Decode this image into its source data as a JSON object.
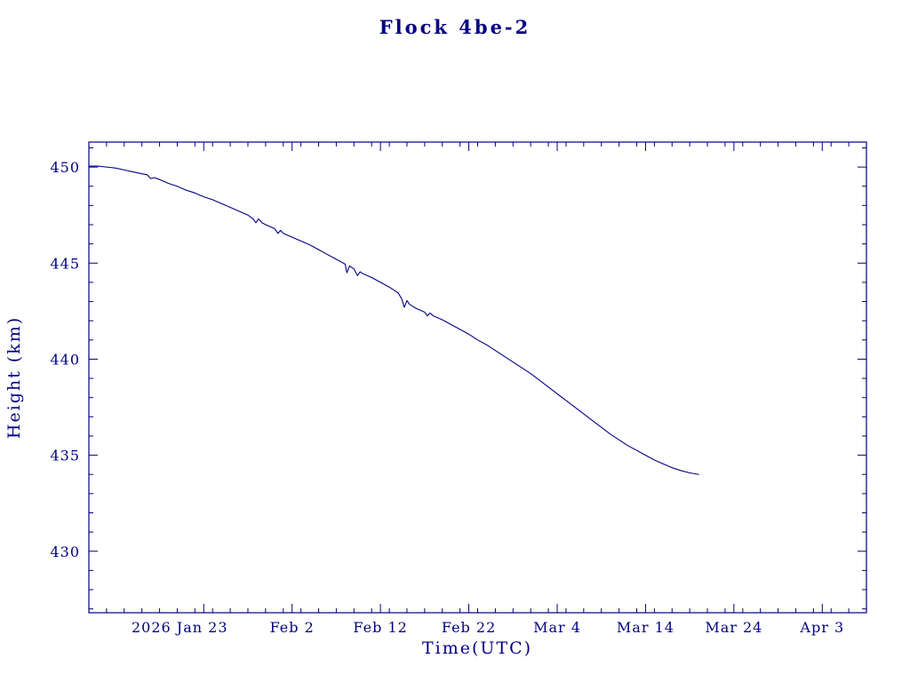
{
  "page": {
    "background": "#ffffff",
    "accent": "#000080"
  },
  "chart_data": {
    "type": "line",
    "title": "Flock 4be-2",
    "xlabel": "Time(UTC)",
    "ylabel": "Height (km)",
    "line_color": "#000080",
    "grid": false,
    "legend": "none",
    "x_axis": {
      "unit": "days (0 = 2026 Jan 10, read from tick labels)",
      "range": [
        0,
        88
      ],
      "minor_tick_step": 2,
      "major_ticks": [
        {
          "day": 13,
          "label": "2026 Jan 23",
          "dx": -27
        },
        {
          "day": 23,
          "label": "Feb 2",
          "dx": 0
        },
        {
          "day": 33,
          "label": "Feb 12",
          "dx": 0
        },
        {
          "day": 43,
          "label": "Feb 22",
          "dx": 0
        },
        {
          "day": 53,
          "label": "Mar 4",
          "dx": 0
        },
        {
          "day": 63,
          "label": "Mar 14",
          "dx": 0
        },
        {
          "day": 73,
          "label": "Mar 24",
          "dx": 0
        },
        {
          "day": 83,
          "label": "Apr 3",
          "dx": 0
        }
      ]
    },
    "y_axis": {
      "unit": "km",
      "range": [
        426.8,
        451.3
      ],
      "minor_tick_step": 1,
      "major_ticks": [
        430,
        435,
        440,
        445,
        450
      ]
    },
    "series": [
      {
        "name": "height_km",
        "points": [
          [
            0,
            450.05
          ],
          [
            1,
            450.05
          ],
          [
            2,
            450.0
          ],
          [
            3,
            449.95
          ],
          [
            4,
            449.85
          ],
          [
            5,
            449.75
          ],
          [
            6,
            449.65
          ],
          [
            6.6,
            449.6
          ],
          [
            7.0,
            449.4
          ],
          [
            7.4,
            449.45
          ],
          [
            8,
            449.35
          ],
          [
            9,
            449.15
          ],
          [
            10,
            449.0
          ],
          [
            11,
            448.8
          ],
          [
            12,
            448.65
          ],
          [
            13,
            448.45
          ],
          [
            14,
            448.3
          ],
          [
            15,
            448.1
          ],
          [
            16,
            447.9
          ],
          [
            17,
            447.7
          ],
          [
            18,
            447.5
          ],
          [
            18.6,
            447.3
          ],
          [
            18.9,
            447.1
          ],
          [
            19.2,
            447.3
          ],
          [
            19.6,
            447.1
          ],
          [
            20,
            447.0
          ],
          [
            21,
            446.8
          ],
          [
            21.4,
            446.55
          ],
          [
            21.7,
            446.7
          ],
          [
            22,
            446.55
          ],
          [
            23,
            446.35
          ],
          [
            24,
            446.15
          ],
          [
            25,
            445.95
          ],
          [
            26,
            445.7
          ],
          [
            27,
            445.45
          ],
          [
            28,
            445.2
          ],
          [
            29,
            444.95
          ],
          [
            29.2,
            444.5
          ],
          [
            29.5,
            444.85
          ],
          [
            30,
            444.7
          ],
          [
            30.4,
            444.35
          ],
          [
            30.7,
            444.55
          ],
          [
            31,
            444.45
          ],
          [
            32,
            444.25
          ],
          [
            33,
            444.0
          ],
          [
            34,
            443.75
          ],
          [
            35,
            443.45
          ],
          [
            35.4,
            443.15
          ],
          [
            35.7,
            442.7
          ],
          [
            36.0,
            443.05
          ],
          [
            36.3,
            442.85
          ],
          [
            37,
            442.65
          ],
          [
            38,
            442.45
          ],
          [
            38.3,
            442.25
          ],
          [
            38.6,
            442.4
          ],
          [
            39,
            442.25
          ],
          [
            40,
            442.05
          ],
          [
            41,
            441.8
          ],
          [
            42,
            441.55
          ],
          [
            43,
            441.3
          ],
          [
            44,
            441.0
          ],
          [
            45,
            440.75
          ],
          [
            46,
            440.45
          ],
          [
            47,
            440.15
          ],
          [
            48,
            439.85
          ],
          [
            49,
            439.55
          ],
          [
            50,
            439.25
          ],
          [
            51,
            438.9
          ],
          [
            52,
            438.55
          ],
          [
            53,
            438.2
          ],
          [
            54,
            437.85
          ],
          [
            55,
            437.5
          ],
          [
            56,
            437.15
          ],
          [
            57,
            436.8
          ],
          [
            58,
            436.45
          ],
          [
            59,
            436.1
          ],
          [
            60,
            435.8
          ],
          [
            61,
            435.5
          ],
          [
            62,
            435.25
          ],
          [
            63,
            435.0
          ],
          [
            64,
            434.75
          ],
          [
            65,
            434.55
          ],
          [
            66,
            434.35
          ],
          [
            67,
            434.2
          ],
          [
            68,
            434.08
          ],
          [
            69,
            434.0
          ]
        ]
      }
    ]
  }
}
